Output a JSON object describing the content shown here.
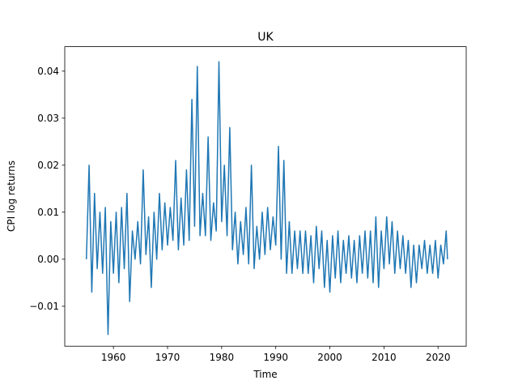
{
  "chart_data": {
    "type": "line",
    "title": "UK",
    "xlabel": "Time",
    "ylabel": "CPI log returns",
    "x": [
      1955.0,
      1955.5,
      1956.0,
      1956.5,
      1957.0,
      1957.5,
      1958.0,
      1958.5,
      1959.0,
      1959.5,
      1960.0,
      1960.5,
      1961.0,
      1961.5,
      1962.0,
      1962.5,
      1963.0,
      1963.5,
      1964.0,
      1964.5,
      1965.0,
      1965.5,
      1966.0,
      1966.5,
      1967.0,
      1967.5,
      1968.0,
      1968.5,
      1969.0,
      1969.5,
      1970.0,
      1970.5,
      1971.0,
      1971.5,
      1972.0,
      1972.5,
      1973.0,
      1973.5,
      1974.0,
      1974.5,
      1975.0,
      1975.5,
      1976.0,
      1976.5,
      1977.0,
      1977.5,
      1978.0,
      1978.5,
      1979.0,
      1979.5,
      1980.0,
      1980.5,
      1981.0,
      1981.5,
      1982.0,
      1982.5,
      1983.0,
      1983.5,
      1984.0,
      1984.5,
      1985.0,
      1985.5,
      1986.0,
      1986.5,
      1987.0,
      1987.5,
      1988.0,
      1988.5,
      1989.0,
      1989.5,
      1990.0,
      1990.5,
      1991.0,
      1991.5,
      1992.0,
      1992.5,
      1993.0,
      1993.5,
      1994.0,
      1994.5,
      1995.0,
      1995.5,
      1996.0,
      1996.5,
      1997.0,
      1997.5,
      1998.0,
      1998.5,
      1999.0,
      1999.5,
      2000.0,
      2000.5,
      2001.0,
      2001.5,
      2002.0,
      2002.5,
      2003.0,
      2003.5,
      2004.0,
      2004.5,
      2005.0,
      2005.5,
      2006.0,
      2006.5,
      2007.0,
      2007.5,
      2008.0,
      2008.5,
      2009.0,
      2009.5,
      2010.0,
      2010.5,
      2011.0,
      2011.5,
      2012.0,
      2012.5,
      2013.0,
      2013.5,
      2014.0,
      2014.5,
      2015.0,
      2015.5,
      2016.0,
      2016.5,
      2017.0,
      2017.5,
      2018.0,
      2018.5,
      2019.0,
      2019.5,
      2020.0,
      2020.5,
      2021.0,
      2021.5,
      2021.75
    ],
    "series": [
      {
        "name": "UK",
        "color": "#1f77b4",
        "values": [
          0.0,
          0.02,
          -0.007,
          0.014,
          -0.002,
          0.01,
          -0.003,
          0.011,
          -0.016,
          0.008,
          -0.003,
          0.01,
          -0.005,
          0.011,
          -0.002,
          0.014,
          -0.009,
          0.006,
          0.0,
          0.008,
          -0.001,
          0.019,
          0.001,
          0.009,
          -0.006,
          0.01,
          0.0,
          0.014,
          0.002,
          0.012,
          0.003,
          0.011,
          0.004,
          0.021,
          0.002,
          0.013,
          0.003,
          0.019,
          0.004,
          0.034,
          0.007,
          0.041,
          0.005,
          0.014,
          0.005,
          0.026,
          0.004,
          0.012,
          0.006,
          0.042,
          0.008,
          0.02,
          0.005,
          0.028,
          0.002,
          0.01,
          -0.001,
          0.008,
          0.001,
          0.011,
          -0.001,
          0.02,
          -0.002,
          0.007,
          0.0,
          0.01,
          0.001,
          0.011,
          0.002,
          0.009,
          0.003,
          0.024,
          0.0,
          0.021,
          -0.003,
          0.008,
          -0.003,
          0.006,
          -0.002,
          0.006,
          -0.003,
          0.006,
          -0.003,
          0.005,
          -0.005,
          0.007,
          -0.002,
          0.006,
          -0.006,
          0.004,
          -0.007,
          0.005,
          -0.004,
          0.006,
          -0.005,
          0.004,
          -0.003,
          0.005,
          -0.004,
          0.004,
          -0.005,
          0.005,
          -0.003,
          0.006,
          -0.004,
          0.006,
          -0.005,
          0.009,
          -0.006,
          0.006,
          -0.002,
          0.009,
          -0.001,
          0.008,
          -0.003,
          0.006,
          -0.002,
          0.005,
          -0.003,
          0.004,
          -0.006,
          0.003,
          -0.005,
          0.003,
          -0.002,
          0.004,
          -0.003,
          0.003,
          -0.003,
          0.004,
          -0.004,
          0.003,
          -0.001,
          0.006,
          0.0
        ]
      }
    ],
    "xlim": [
      1951.0,
      2025.2
    ],
    "ylim": [
      -0.0185,
      0.0452
    ],
    "xticks": [
      1960,
      1970,
      1980,
      1990,
      2000,
      2010,
      2020
    ],
    "yticks": [
      {
        "value": -0.01,
        "label": "−0.01"
      },
      {
        "value": 0.0,
        "label": "0.00"
      },
      {
        "value": 0.01,
        "label": "0.01"
      },
      {
        "value": 0.02,
        "label": "0.02"
      },
      {
        "value": 0.03,
        "label": "0.03"
      },
      {
        "value": 0.04,
        "label": "0.04"
      }
    ],
    "grid": false
  }
}
